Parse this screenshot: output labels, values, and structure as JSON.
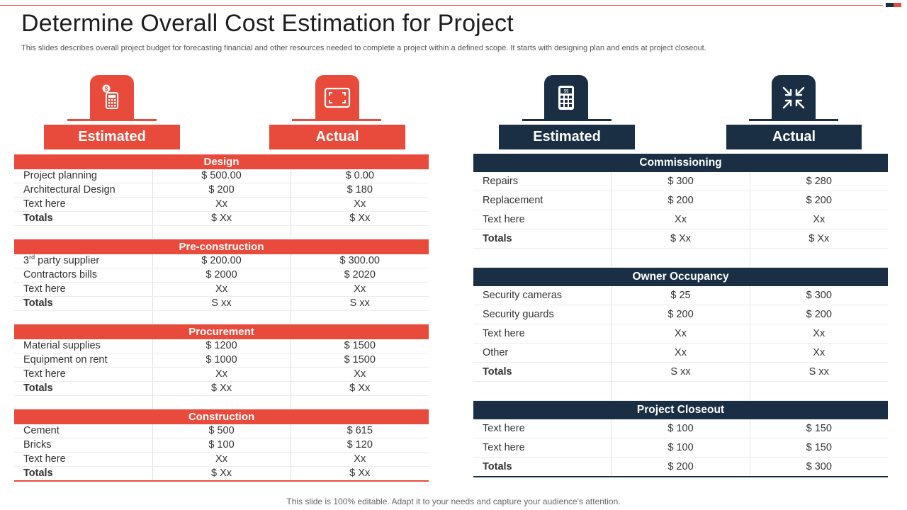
{
  "title": "Determine Overall Cost Estimation for Project",
  "subtitle": "This slides describes overall project budget for forecasting financial and other resources needed to complete a project within a defined scope. It starts with designing plan and ends at project closeout.",
  "footer": "This slide is 100% editable. Adapt it to your needs and capture your audience's attention.",
  "colors": {
    "accent_red": "#e84a3b",
    "navy": "#1a2f44"
  },
  "headers": {
    "left_estimated": {
      "label": "Estimated",
      "icon": "calculator-dollar-icon"
    },
    "left_actual": {
      "label": "Actual",
      "icon": "expand-frame-icon"
    },
    "right_estimated": {
      "label": "Estimated",
      "icon": "calculator-icon"
    },
    "right_actual": {
      "label": "Actual",
      "icon": "collapse-arrows-icon"
    }
  },
  "left_table": {
    "sections": [
      {
        "name": "Design",
        "rows": [
          [
            "Project planning",
            "$ 500.00",
            "$ 0.00"
          ],
          [
            "Architectural Design",
            "$ 200",
            "$ 180"
          ],
          [
            "Text here",
            "Xx",
            "Xx"
          ]
        ],
        "totals": [
          "Totals",
          "$ Xx",
          "$ Xx"
        ]
      },
      {
        "name": "Pre-construction",
        "rows": [
          [
            "party supplier",
            "$ 200.00",
            "$ 300.00"
          ],
          [
            "Contractors bills",
            "$ 2000",
            "$ 2020"
          ],
          [
            "Text here",
            "Xx",
            "Xx"
          ]
        ],
        "row0_prefix": "3",
        "row0_sup": "rd",
        "totals": [
          "Totals",
          "S xx",
          "S xx"
        ]
      },
      {
        "name": "Procurement",
        "rows": [
          [
            "Material supplies",
            "$ 1200",
            "$ 1500"
          ],
          [
            "Equipment on rent",
            "$ 1000",
            "$ 1500"
          ],
          [
            "Text here",
            "Xx",
            "Xx"
          ]
        ],
        "totals": [
          "Totals",
          "$ Xx",
          "$ Xx"
        ]
      },
      {
        "name": "Construction",
        "rows": [
          [
            "Cement",
            "$ 500",
            "$ 615"
          ],
          [
            "Bricks",
            "$ 100",
            "$ 120"
          ],
          [
            "Text here",
            "Xx",
            "Xx"
          ]
        ],
        "totals": [
          "Totals",
          "$ Xx",
          "$ Xx"
        ]
      }
    ]
  },
  "right_table": {
    "sections": [
      {
        "name": "Commissioning",
        "rows": [
          [
            "Repairs",
            "$ 300",
            "$ 280"
          ],
          [
            "Replacement",
            "$ 200",
            "$ 200"
          ],
          [
            "Text here",
            "Xx",
            "Xx"
          ]
        ],
        "totals": [
          "Totals",
          "$ Xx",
          "$ Xx"
        ]
      },
      {
        "name": "Owner Occupancy",
        "rows": [
          [
            "Security cameras",
            "$ 25",
            "$ 300"
          ],
          [
            "Security guards",
            "$ 200",
            "$ 200"
          ],
          [
            "Text here",
            "Xx",
            "Xx"
          ],
          [
            "Other",
            "Xx",
            "Xx"
          ]
        ],
        "totals": [
          "Totals",
          "S xx",
          "S xx"
        ]
      },
      {
        "name": "Project Closeout",
        "rows": [
          [
            "Text here",
            "$ 100",
            "$ 150"
          ],
          [
            "Text here",
            "$ 100",
            "$ 150"
          ]
        ],
        "totals": [
          "Totals",
          "$ 200",
          "$ 300"
        ]
      }
    ]
  }
}
